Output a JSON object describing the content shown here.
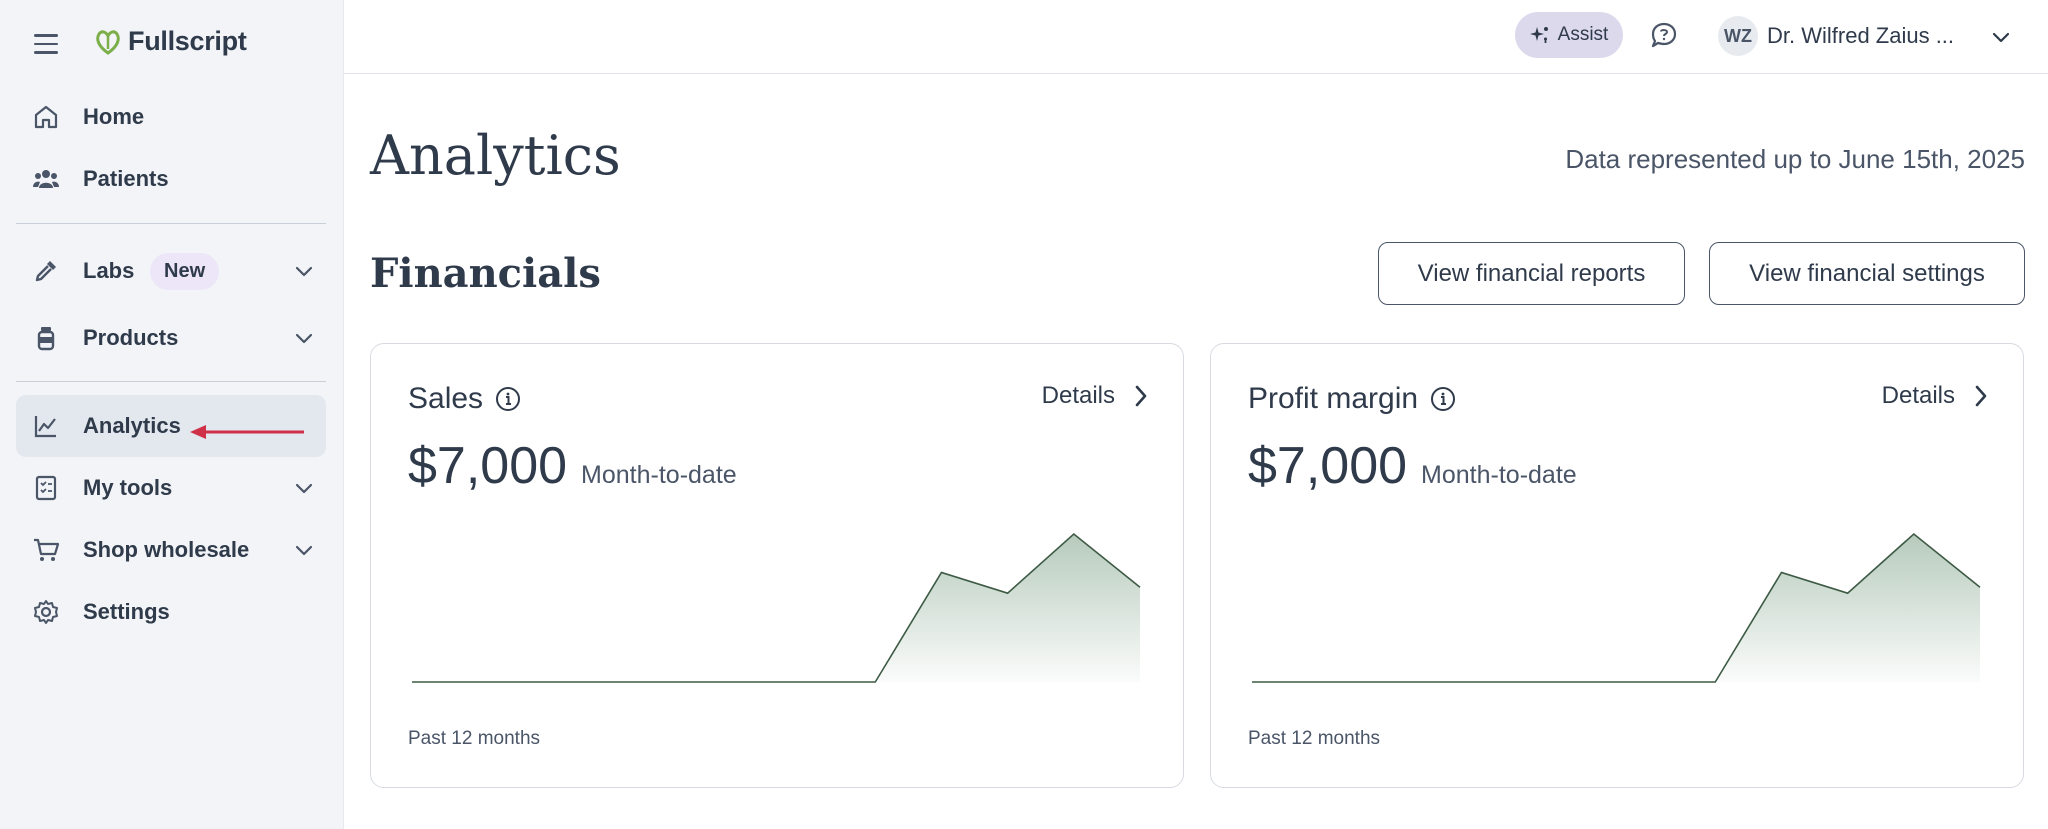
{
  "app": {
    "logo_text": "Fullscript"
  },
  "sidebar": {
    "items": [
      {
        "label": "Home"
      },
      {
        "label": "Patients"
      },
      {
        "label": "Labs",
        "badge": "New"
      },
      {
        "label": "Products"
      },
      {
        "label": "Analytics"
      },
      {
        "label": "My tools"
      },
      {
        "label": "Shop wholesale"
      },
      {
        "label": "Settings"
      }
    ]
  },
  "header": {
    "assist_label": "Assist",
    "avatar_initials": "WZ",
    "user_name": "Dr. Wilfred Zaius ..."
  },
  "main": {
    "title": "Analytics",
    "data_note": "Data represented up to June 15th, 2025",
    "section_title": "Financials",
    "buttons": {
      "reports": "View financial reports",
      "settings": "View financial settings"
    },
    "cards": [
      {
        "title": "Sales",
        "details": "Details",
        "value": "$7,000",
        "value_sub": "Month-to-date",
        "period": "Past 12 months"
      },
      {
        "title": "Profit margin",
        "details": "Details",
        "value": "$7,000",
        "value_sub": "Month-to-date",
        "period": "Past 12 months"
      }
    ]
  },
  "colors": {
    "sparkline_stroke": "#3d5a44",
    "sparkline_fill": "#8fae98",
    "arrow": "#d0314a",
    "assist_bg": "#dcd9ec",
    "badge_bg": "#ece6f8"
  },
  "chart_data": [
    {
      "type": "area",
      "series": [
        {
          "values": [
            0,
            0,
            0,
            0,
            0,
            0,
            0,
            0,
            3.7,
            3.0,
            5.0,
            3.2
          ]
        }
      ]
    },
    {
      "type": "area",
      "series": [
        {
          "values": [
            0,
            0,
            0,
            0,
            0,
            0,
            0,
            0,
            3.7,
            3.0,
            5.0,
            3.2
          ]
        }
      ]
    }
  ]
}
